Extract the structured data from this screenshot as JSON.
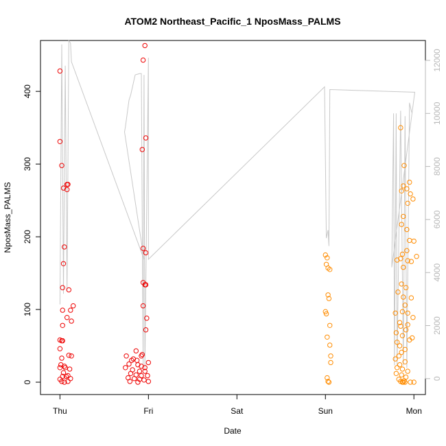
{
  "chart_data": {
    "type": "scatter",
    "title": "ATOM2 Northeast_Pacific_1 NposMass_PALMS",
    "xlabel": "Date",
    "ylabel": "NposMass_PALMS",
    "x_ticks": [
      "Thu",
      "Fri",
      "Sat",
      "Sun",
      "Mon"
    ],
    "y_ticks": [
      "0",
      "100",
      "200",
      "300",
      "400"
    ],
    "y2_ticks": [
      "0",
      "2000",
      "4000",
      "6000",
      "8000",
      "10000",
      "12000"
    ],
    "xlim": [
      -0.22,
      4.13
    ],
    "ylim": [
      -17,
      470
    ],
    "y2lim": [
      -600,
      12750
    ],
    "colors": {
      "early_points": "#ee0000",
      "late_points": "#ff8c00",
      "altitude_line": "#c8c8c8",
      "axis": "#000000",
      "right_axis": "#b8b8b8"
    },
    "series": [
      {
        "values": [
          [
            0.0,
            428
          ],
          [
            0.0,
            331
          ],
          [
            0.02,
            298
          ],
          [
            0.04,
            267
          ],
          [
            0.08,
            265
          ],
          [
            0.08,
            272
          ],
          [
            0.09,
            272
          ],
          [
            0.05,
            186
          ],
          [
            0.04,
            163
          ],
          [
            0.03,
            130
          ],
          [
            0.1,
            127
          ],
          [
            0.03,
            99
          ],
          [
            0.12,
            99
          ],
          [
            0.15,
            105
          ],
          [
            0.08,
            89
          ],
          [
            0.13,
            84
          ],
          [
            0.03,
            78
          ],
          [
            0.0,
            58
          ],
          [
            0.02,
            57
          ],
          [
            0.03,
            57
          ],
          [
            0.0,
            46
          ],
          [
            0.1,
            37
          ],
          [
            0.13,
            36
          ],
          [
            0.02,
            33
          ],
          [
            0.01,
            24
          ],
          [
            0.05,
            22
          ],
          [
            0.06,
            20
          ],
          [
            0.11,
            18
          ],
          [
            0.0,
            20
          ],
          [
            0.04,
            13
          ],
          [
            0.03,
            8
          ],
          [
            0.07,
            8
          ],
          [
            0.09,
            9
          ],
          [
            0.12,
            5
          ],
          [
            0.0,
            4
          ],
          [
            0.02,
            1
          ],
          [
            0.05,
            0
          ],
          [
            0.09,
            1
          ],
          [
            0.96,
            463
          ],
          [
            0.94,
            443
          ],
          [
            0.93,
            320
          ],
          [
            0.97,
            336
          ],
          [
            0.94,
            184
          ],
          [
            0.97,
            178
          ],
          [
            0.94,
            137
          ],
          [
            0.96,
            134
          ],
          [
            0.97,
            134
          ],
          [
            0.94,
            105
          ],
          [
            0.98,
            88
          ],
          [
            0.97,
            72
          ],
          [
            0.86,
            43
          ],
          [
            0.75,
            36
          ],
          [
            0.93,
            38
          ],
          [
            0.92,
            36
          ],
          [
            0.83,
            32
          ],
          [
            0.81,
            30
          ],
          [
            0.87,
            30
          ],
          [
            1.0,
            27
          ],
          [
            0.78,
            25
          ],
          [
            0.88,
            24
          ],
          [
            0.92,
            22
          ],
          [
            0.96,
            20
          ],
          [
            0.74,
            20
          ],
          [
            0.82,
            17
          ],
          [
            0.9,
            15
          ],
          [
            0.96,
            15
          ],
          [
            0.8,
            12
          ],
          [
            0.86,
            10
          ],
          [
            0.92,
            9
          ],
          [
            0.99,
            9
          ],
          [
            0.77,
            6
          ],
          [
            0.84,
            5
          ],
          [
            0.9,
            4
          ],
          [
            0.95,
            3
          ],
          [
            1.0,
            1
          ],
          [
            0.79,
            1
          ],
          [
            0.88,
            0
          ]
        ]
      },
      {
        "values": [
          [
            3.0,
            175
          ],
          [
            3.02,
            171
          ],
          [
            3.01,
            162
          ],
          [
            3.03,
            157
          ],
          [
            3.05,
            155
          ],
          [
            3.03,
            120
          ],
          [
            3.04,
            115
          ],
          [
            3.0,
            97
          ],
          [
            3.01,
            94
          ],
          [
            3.05,
            78
          ],
          [
            3.02,
            62
          ],
          [
            3.05,
            51
          ],
          [
            3.06,
            36
          ],
          [
            3.06,
            27
          ],
          [
            3.02,
            6
          ],
          [
            3.03,
            1
          ],
          [
            3.04,
            0
          ],
          [
            3.85,
            350
          ],
          [
            3.89,
            298
          ],
          [
            3.95,
            275
          ],
          [
            3.88,
            270
          ],
          [
            3.92,
            266
          ],
          [
            3.86,
            263
          ],
          [
            3.96,
            259
          ],
          [
            3.99,
            252
          ],
          [
            3.93,
            246
          ],
          [
            3.88,
            228
          ],
          [
            3.86,
            217
          ],
          [
            3.92,
            210
          ],
          [
            3.95,
            195
          ],
          [
            4.0,
            194
          ],
          [
            3.92,
            181
          ],
          [
            3.87,
            176
          ],
          [
            4.03,
            173
          ],
          [
            3.85,
            170
          ],
          [
            3.81,
            168
          ],
          [
            3.93,
            167
          ],
          [
            3.97,
            166
          ],
          [
            3.88,
            158
          ],
          [
            3.86,
            135
          ],
          [
            3.91,
            130
          ],
          [
            3.82,
            124
          ],
          [
            3.88,
            117
          ],
          [
            3.97,
            116
          ],
          [
            3.9,
            106
          ],
          [
            3.87,
            97
          ],
          [
            3.93,
            95
          ],
          [
            3.79,
            95
          ],
          [
            3.99,
            89
          ],
          [
            3.84,
            82
          ],
          [
            3.93,
            79
          ],
          [
            3.85,
            77
          ],
          [
            3.91,
            72
          ],
          [
            3.8,
            68
          ],
          [
            3.87,
            64
          ],
          [
            3.98,
            61
          ],
          [
            3.95,
            58
          ],
          [
            3.81,
            55
          ],
          [
            3.84,
            50
          ],
          [
            3.9,
            45
          ],
          [
            3.86,
            41
          ],
          [
            3.83,
            36
          ],
          [
            3.79,
            32
          ],
          [
            3.9,
            28
          ],
          [
            3.84,
            24
          ],
          [
            3.81,
            20
          ],
          [
            3.87,
            18
          ],
          [
            3.93,
            15
          ],
          [
            3.8,
            12
          ],
          [
            3.86,
            10
          ],
          [
            3.91,
            7
          ],
          [
            3.83,
            4
          ],
          [
            3.85,
            1
          ],
          [
            3.87,
            0
          ],
          [
            3.88,
            0
          ],
          [
            3.9,
            0
          ],
          [
            3.96,
            0
          ],
          [
            4.0,
            0
          ],
          [
            3.89,
            2
          ]
        ]
      },
      {
        "axis": "right",
        "values": [
          [
            0.0,
            2800
          ],
          [
            0.02,
            12600
          ],
          [
            0.04,
            3200
          ],
          [
            0.06,
            11800
          ],
          [
            0.08,
            3300
          ],
          [
            0.1,
            12750
          ],
          [
            0.12,
            12650
          ],
          [
            0.13,
            11950
          ],
          [
            0.95,
            4500
          ],
          [
            0.73,
            9300
          ],
          [
            0.74,
            9500
          ],
          [
            0.78,
            10500
          ],
          [
            0.8,
            10700
          ],
          [
            0.85,
            11450
          ],
          [
            0.9,
            11500
          ],
          [
            0.92,
            11500
          ],
          [
            0.94,
            400
          ],
          [
            0.95,
            11450
          ],
          [
            0.96,
            400
          ],
          [
            1.0,
            12100
          ],
          [
            1.0,
            4500
          ],
          [
            2.99,
            11000
          ],
          [
            3.01,
            5300
          ],
          [
            3.03,
            5600
          ],
          [
            3.04,
            5000
          ],
          [
            3.05,
            10900
          ],
          [
            4.0,
            10800
          ],
          [
            4.01,
            10800
          ],
          [
            3.75,
            4200
          ],
          [
            3.77,
            10000
          ],
          [
            3.78,
            500
          ],
          [
            3.8,
            10000
          ],
          [
            3.81,
            500
          ],
          [
            3.85,
            10100
          ],
          [
            3.88,
            500
          ],
          [
            3.9,
            9900
          ],
          [
            3.92,
            400
          ],
          [
            3.95,
            10400
          ],
          [
            3.97,
            10100
          ],
          [
            3.98,
            10000
          ]
        ]
      }
    ]
  }
}
